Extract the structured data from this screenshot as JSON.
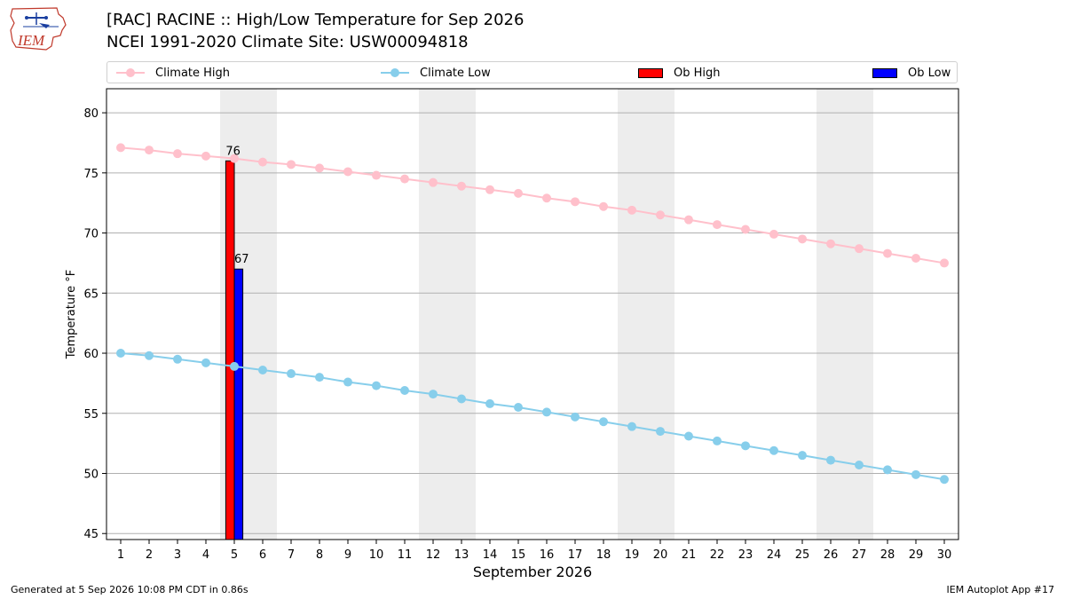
{
  "header": {
    "title_line1": "[RAC] RACINE :: High/Low Temperature for Sep 2026",
    "title_line2": "NCEI 1991-2020 Climate Site: USW00094818",
    "logo_text": "IEM"
  },
  "legend": {
    "items": [
      {
        "label": "Climate High",
        "kind": "line",
        "color": "#ffc0cb"
      },
      {
        "label": "Climate Low",
        "kind": "line",
        "color": "#87ceeb"
      },
      {
        "label": "Ob High",
        "kind": "box",
        "color": "#ff0000"
      },
      {
        "label": "Ob Low",
        "kind": "box",
        "color": "#0000ff"
      }
    ]
  },
  "footer": {
    "left": "Generated at 5 Sep 2026 10:08 PM CDT in 0.86s",
    "right": "IEM Autoplot App #17"
  },
  "chart_data": {
    "type": "line",
    "xlabel": "September 2026",
    "ylabel": "Temperature °F",
    "xlim": [
      0.5,
      30.5
    ],
    "ylim": [
      44.5,
      82
    ],
    "yticks": [
      45,
      50,
      55,
      60,
      65,
      70,
      75,
      80
    ],
    "x": [
      1,
      2,
      3,
      4,
      5,
      6,
      7,
      8,
      9,
      10,
      11,
      12,
      13,
      14,
      15,
      16,
      17,
      18,
      19,
      20,
      21,
      22,
      23,
      24,
      25,
      26,
      27,
      28,
      29,
      30
    ],
    "grid": "horizontal",
    "weekend_shading": [
      [
        4.5,
        6.5
      ],
      [
        11.5,
        13.5
      ],
      [
        18.5,
        20.5
      ],
      [
        25.5,
        27.5
      ]
    ],
    "series": [
      {
        "name": "Climate High",
        "type": "line",
        "color": "#ffc0cb",
        "values": [
          77.1,
          76.9,
          76.6,
          76.4,
          76.2,
          75.9,
          75.7,
          75.4,
          75.1,
          74.8,
          74.5,
          74.2,
          73.9,
          73.6,
          73.3,
          72.9,
          72.6,
          72.2,
          71.9,
          71.5,
          71.1,
          70.7,
          70.3,
          69.9,
          69.5,
          69.1,
          68.7,
          68.3,
          67.9,
          67.5
        ]
      },
      {
        "name": "Climate Low",
        "type": "line",
        "color": "#87ceeb",
        "values": [
          60.0,
          59.8,
          59.5,
          59.2,
          58.9,
          58.6,
          58.3,
          58.0,
          57.6,
          57.3,
          56.9,
          56.6,
          56.2,
          55.8,
          55.5,
          55.1,
          54.7,
          54.3,
          53.9,
          53.5,
          53.1,
          52.7,
          52.3,
          51.9,
          51.5,
          51.1,
          50.7,
          50.3,
          49.9,
          49.5
        ]
      },
      {
        "name": "Ob High",
        "type": "bar",
        "color": "#ff0000",
        "offset": -0.15,
        "points": [
          {
            "x": 5,
            "y": 76,
            "label": "76"
          }
        ]
      },
      {
        "name": "Ob Low",
        "type": "bar",
        "color": "#0000ff",
        "offset": 0.15,
        "points": [
          {
            "x": 5,
            "y": 67,
            "label": "67"
          }
        ]
      }
    ]
  }
}
